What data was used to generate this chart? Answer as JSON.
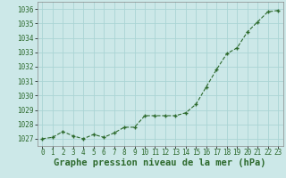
{
  "x": [
    0,
    1,
    2,
    3,
    4,
    5,
    6,
    7,
    8,
    9,
    10,
    11,
    12,
    13,
    14,
    15,
    16,
    17,
    18,
    19,
    20,
    21,
    22,
    23
  ],
  "y": [
    1027.0,
    1027.1,
    1027.5,
    1027.2,
    1027.0,
    1027.3,
    1027.1,
    1027.4,
    1027.8,
    1027.8,
    1028.6,
    1028.6,
    1028.6,
    1028.6,
    1028.8,
    1029.4,
    1030.6,
    1031.8,
    1032.9,
    1033.3,
    1034.4,
    1035.1,
    1035.8,
    1035.9
  ],
  "xlim": [
    -0.5,
    23.5
  ],
  "ylim": [
    1026.5,
    1036.5
  ],
  "yticks": [
    1027,
    1028,
    1029,
    1030,
    1031,
    1032,
    1033,
    1034,
    1035,
    1036
  ],
  "xticks": [
    0,
    1,
    2,
    3,
    4,
    5,
    6,
    7,
    8,
    9,
    10,
    11,
    12,
    13,
    14,
    15,
    16,
    17,
    18,
    19,
    20,
    21,
    22,
    23
  ],
  "xlabel": "Graphe pression niveau de la mer (hPa)",
  "line_color": "#2d6a2d",
  "marker": "+",
  "bg_color": "#cce8e8",
  "grid_color": "#aad4d4",
  "tick_label_fontsize": 5.5,
  "xlabel_fontsize": 7.5
}
